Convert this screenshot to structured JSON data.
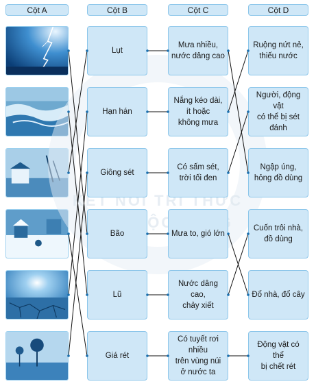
{
  "headers": {
    "col_a": "Cột A",
    "col_b": "Cột B",
    "col_c": "Cột C",
    "col_d": "Cột D"
  },
  "column_a": [
    {
      "icon": "lightning-storm-photo"
    },
    {
      "icon": "flood-water-photo"
    },
    {
      "icon": "storm-damage-photo"
    },
    {
      "icon": "snowy-village-photo"
    },
    {
      "icon": "cracked-drought-ground-photo"
    },
    {
      "icon": "flooded-trees-photo"
    }
  ],
  "column_b": [
    "Lụt",
    "Hạn hán",
    "Giông sét",
    "Bão",
    "Lũ",
    "Giá rét"
  ],
  "column_c": [
    "Mưa nhiều,\nnước dâng cao",
    "Nắng kéo dài,\nít hoặc\nkhông mưa",
    "Có sấm sét,\ntrời tối đen",
    "Mưa to, gió lớn",
    "Nước dâng cao,\nchảy xiết",
    "Có tuyết rơi nhiều\ntrên vùng núi\nở nước ta"
  ],
  "column_d": [
    "Ruộng nứt nẻ,\nthiếu nước",
    "Người, động vật\ncó thể bị sét đánh",
    "Ngập úng,\nhỏng đồ dùng",
    "Cuốn trôi nhà,\nđồ dùng",
    "Đổ nhà, đổ cây",
    "Động vật có thể\nbị chết rét"
  ],
  "watermark": {
    "line1": "KẾT NỐI TRI THỨC",
    "line2": "VỚI CUỘC SỐNG"
  },
  "colors": {
    "cell_fill": "#cfe7f7",
    "cell_border": "#8cc6ea",
    "line": "#111111",
    "dot": "#1b6fae"
  }
}
